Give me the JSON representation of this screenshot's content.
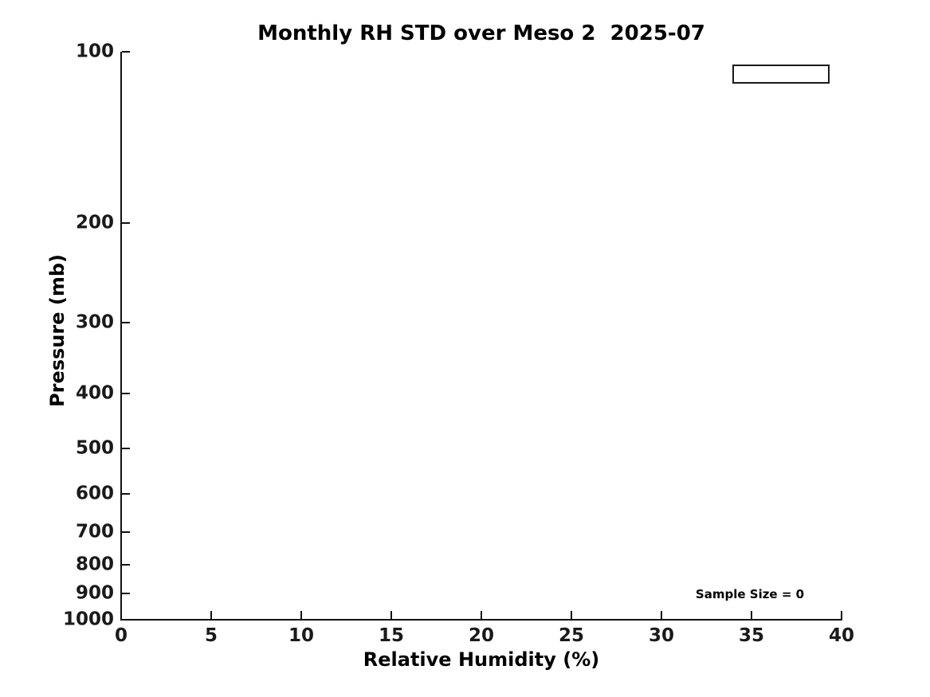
{
  "figure": {
    "background_color": "#ffffff",
    "text_color": "#000000",
    "axis_color": "#111111"
  },
  "chart_data": {
    "type": "line",
    "title": "Monthly RH STD over Meso 2  2025-07",
    "xlabel": "Relative Humidity (%)",
    "ylabel": "Pressure (mb)",
    "xlim": [
      0,
      40
    ],
    "ylim": [
      100,
      1000
    ],
    "xscale": "linear",
    "yscale": "log",
    "y_axis_reversed": true,
    "x_ticks": [
      0,
      5,
      10,
      15,
      20,
      25,
      30,
      35,
      40
    ],
    "y_ticks": [
      100,
      200,
      300,
      400,
      500,
      600,
      700,
      800,
      900,
      1000
    ],
    "grid": false,
    "series": [],
    "legend": {
      "visible": true,
      "position": "top-right",
      "entries": []
    },
    "annotations": [
      {
        "text": "Sample Size = 0",
        "x": 35,
        "y": 900
      }
    ]
  }
}
